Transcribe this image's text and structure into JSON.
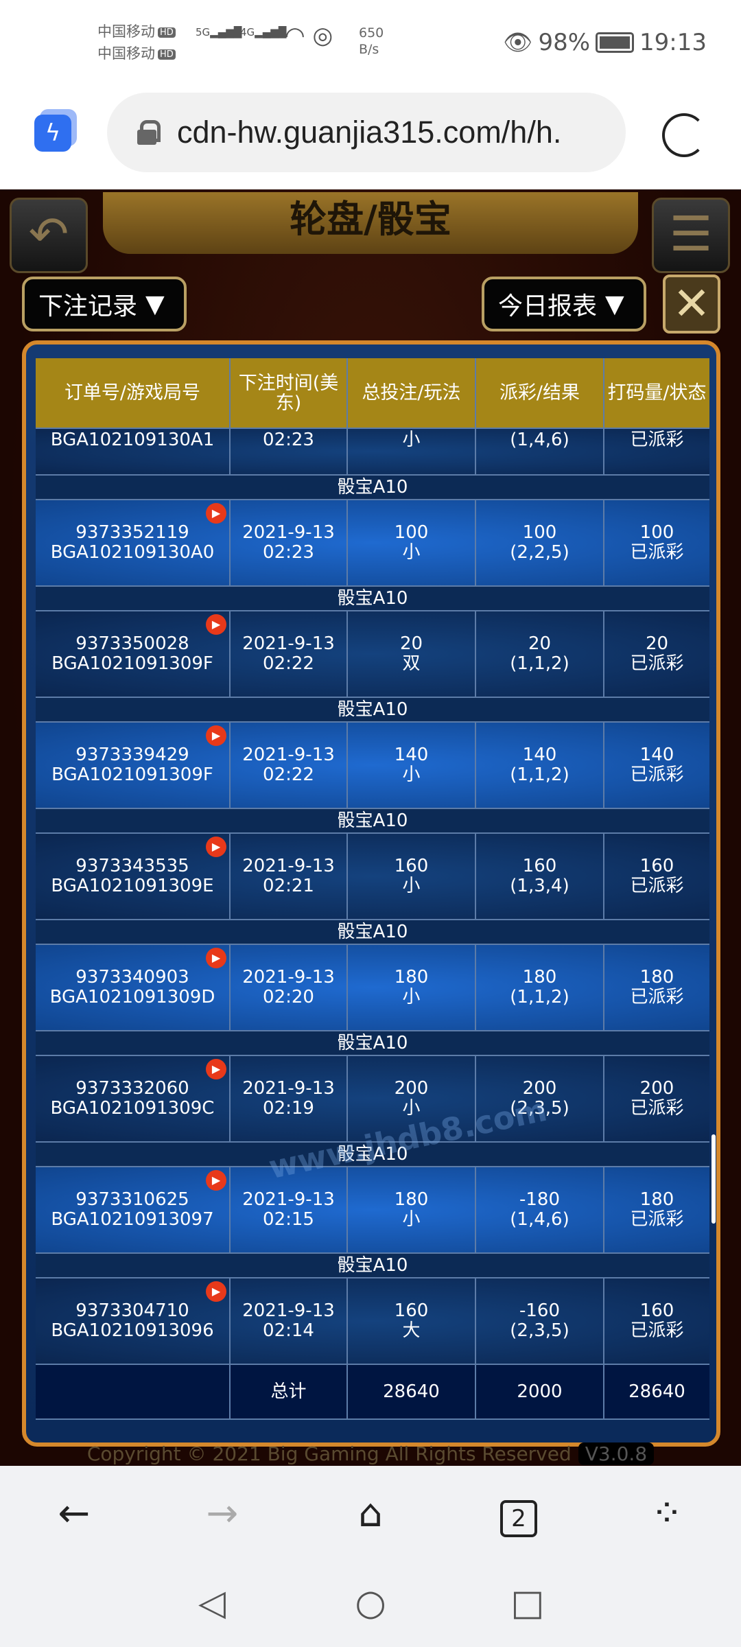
{
  "status_bar": {
    "carrier1": "中国移动",
    "carrier2": "中国移动",
    "hd": "HD",
    "net1": "5G",
    "net2": "4G",
    "speed_value": "650",
    "speed_unit": "B/s",
    "battery": "98%",
    "time": "19:13"
  },
  "browser": {
    "url": "cdn-hw.guanjia315.com/h/h.",
    "tab_count": "2"
  },
  "game": {
    "title": "轮盘/骰宝",
    "bet_record_dropdown": "下注记录",
    "report_dropdown": "今日报表"
  },
  "table": {
    "headers": [
      "订单号/游戏局号",
      "下注时间(美东)",
      "总投注/玩法",
      "派彩/结果",
      "打码量/状态"
    ],
    "partial_row": {
      "game_round": "BGA102109130A1",
      "time": "02:23",
      "play": "小",
      "result": "(1,4,6)",
      "status": "已派彩"
    },
    "rows": [
      {
        "group": "骰宝A10",
        "order": "9373352119",
        "round": "BGA102109130A0",
        "date": "2021-9-13",
        "time": "02:23",
        "bet": "100",
        "play": "小",
        "payout": "100",
        "result": "(2,2,5)",
        "turnover": "100",
        "status": "已派彩"
      },
      {
        "group": "骰宝A10",
        "order": "9373350028",
        "round": "BGA1021091309F",
        "date": "2021-9-13",
        "time": "02:22",
        "bet": "20",
        "play": "双",
        "payout": "20",
        "result": "(1,1,2)",
        "turnover": "20",
        "status": "已派彩"
      },
      {
        "group": "骰宝A10",
        "order": "9373339429",
        "round": "BGA1021091309F",
        "date": "2021-9-13",
        "time": "02:22",
        "bet": "140",
        "play": "小",
        "payout": "140",
        "result": "(1,1,2)",
        "turnover": "140",
        "status": "已派彩"
      },
      {
        "group": "骰宝A10",
        "order": "9373343535",
        "round": "BGA1021091309E",
        "date": "2021-9-13",
        "time": "02:21",
        "bet": "160",
        "play": "小",
        "payout": "160",
        "result": "(1,3,4)",
        "turnover": "160",
        "status": "已派彩"
      },
      {
        "group": "骰宝A10",
        "order": "9373340903",
        "round": "BGA1021091309D",
        "date": "2021-9-13",
        "time": "02:20",
        "bet": "180",
        "play": "小",
        "payout": "180",
        "result": "(1,1,2)",
        "turnover": "180",
        "status": "已派彩"
      },
      {
        "group": "骰宝A10",
        "order": "9373332060",
        "round": "BGA1021091309C",
        "date": "2021-9-13",
        "time": "02:19",
        "bet": "200",
        "play": "小",
        "payout": "200",
        "result": "(2,3,5)",
        "turnover": "200",
        "status": "已派彩"
      },
      {
        "group": "骰宝A10",
        "order": "9373310625",
        "round": "BGA10210913097",
        "date": "2021-9-13",
        "time": "02:15",
        "bet": "180",
        "play": "小",
        "payout": "-180",
        "result": "(1,4,6)",
        "turnover": "180",
        "status": "已派彩"
      },
      {
        "group": "骰宝A10",
        "order": "9373304710",
        "round": "BGA10210913096",
        "date": "2021-9-13",
        "time": "02:14",
        "bet": "160",
        "play": "大",
        "payout": "-160",
        "result": "(2,3,5)",
        "turnover": "160",
        "status": "已派彩"
      }
    ],
    "total": {
      "label": "总计",
      "bet": "28640",
      "payout": "2000",
      "turnover": "28640"
    }
  },
  "watermark": "www.jhdb8.com",
  "footer": {
    "copyright": "Copyright © 2021 Big Gaming All Rights Reserved",
    "version": "V3.0.8"
  }
}
